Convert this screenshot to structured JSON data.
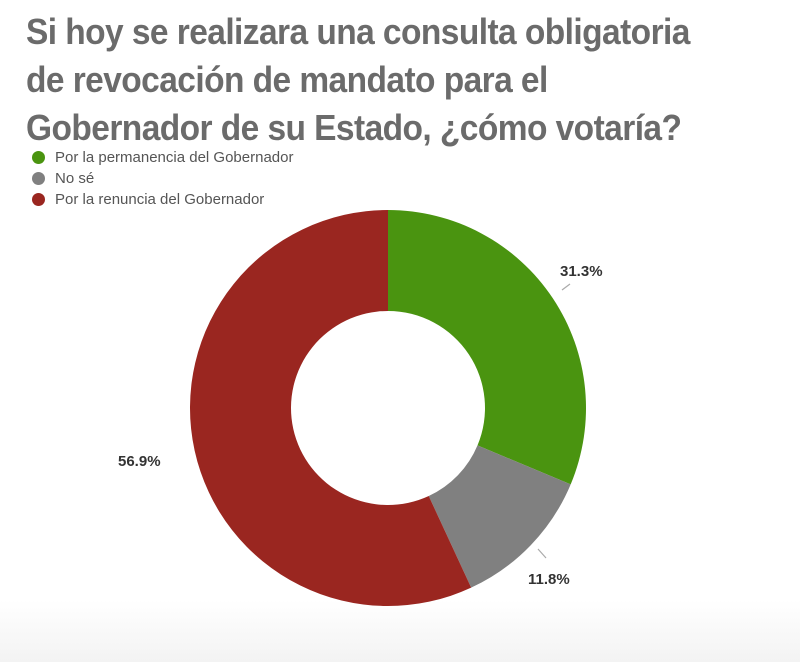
{
  "chart_data": {
    "type": "pie",
    "variant": "donut",
    "title": "Si hoy se realizara una consulta obligatoria de revocación de mandato para el Gobernador de su Estado, ¿cómo votaría?",
    "title_lines": [
      "Si hoy se realizara una consulta obligatoria",
      "de revocación de mandato para el",
      "Gobernador de su Estado, ¿cómo votaría?"
    ],
    "categories": [
      "Por la permanencia del Gobernador",
      "No sé",
      "Por la renuncia del Gobernador"
    ],
    "values": [
      31.3,
      11.8,
      56.9
    ],
    "labels": [
      "31.3%",
      "11.8%",
      "56.9%"
    ],
    "colors": [
      "#4a9410",
      "#808080",
      "#9a2620"
    ],
    "legend_position": "top-left"
  }
}
